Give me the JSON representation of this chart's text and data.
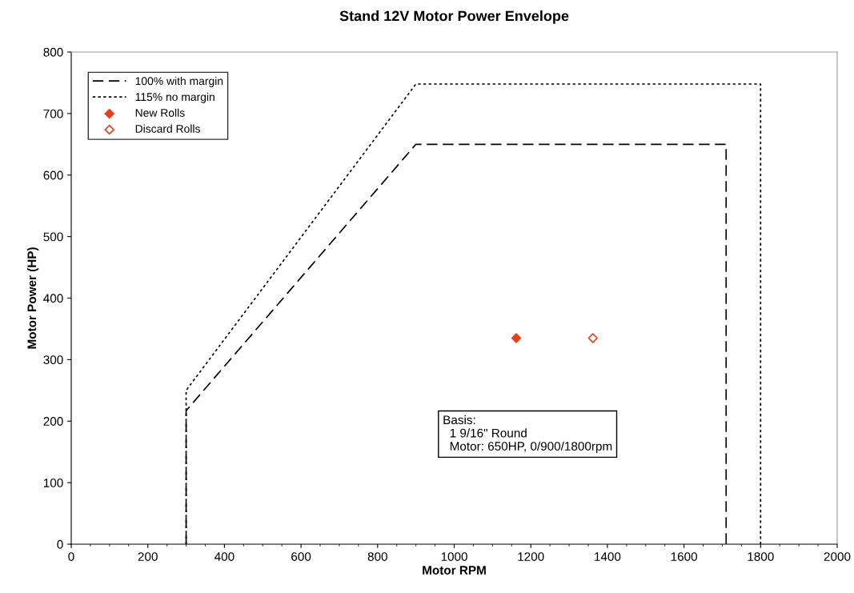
{
  "chart_data": {
    "type": "line",
    "title": "Stand 12V Motor Power Envelope",
    "xlabel": "Motor RPM",
    "ylabel": "Motor Power (HP)",
    "series": [
      {
        "name": "100% with margin",
        "color": "#000000",
        "line_style": "dashed",
        "marker": "none",
        "x": [
          300,
          300,
          900,
          1710,
          1710
        ],
        "values": [
          0,
          217,
          650,
          650,
          0
        ]
      },
      {
        "name": "115% no margin",
        "color": "#000000",
        "line_style": "dotted",
        "marker": "none",
        "x": [
          300,
          300,
          900,
          1800,
          1800
        ],
        "values": [
          0,
          250,
          748,
          748,
          0
        ]
      },
      {
        "name": "New Rolls",
        "type": "scatter",
        "color": "#e8401c",
        "marker": "diamond",
        "x": [
          1162
        ],
        "values": [
          335
        ]
      },
      {
        "name": "Discard Rolls",
        "type": "scatter",
        "color": "#e8401c",
        "marker": "diamond open",
        "x": [
          1362
        ],
        "values": [
          335
        ]
      }
    ],
    "annotations": [
      {
        "text": "Basis:\n  1 9/16\" Round\n  Motor: 650HP, 0/900/1800rpm"
      }
    ],
    "xlim": [
      0,
      2000
    ],
    "xticks": [
      0,
      200,
      400,
      600,
      800,
      1000,
      1200,
      1400,
      1600,
      1800,
      2000
    ],
    "ylim": [
      0,
      800
    ],
    "yticks": [
      0,
      100,
      200,
      300,
      400,
      500,
      600,
      700,
      800
    ],
    "grid": false,
    "legend": "top left"
  }
}
